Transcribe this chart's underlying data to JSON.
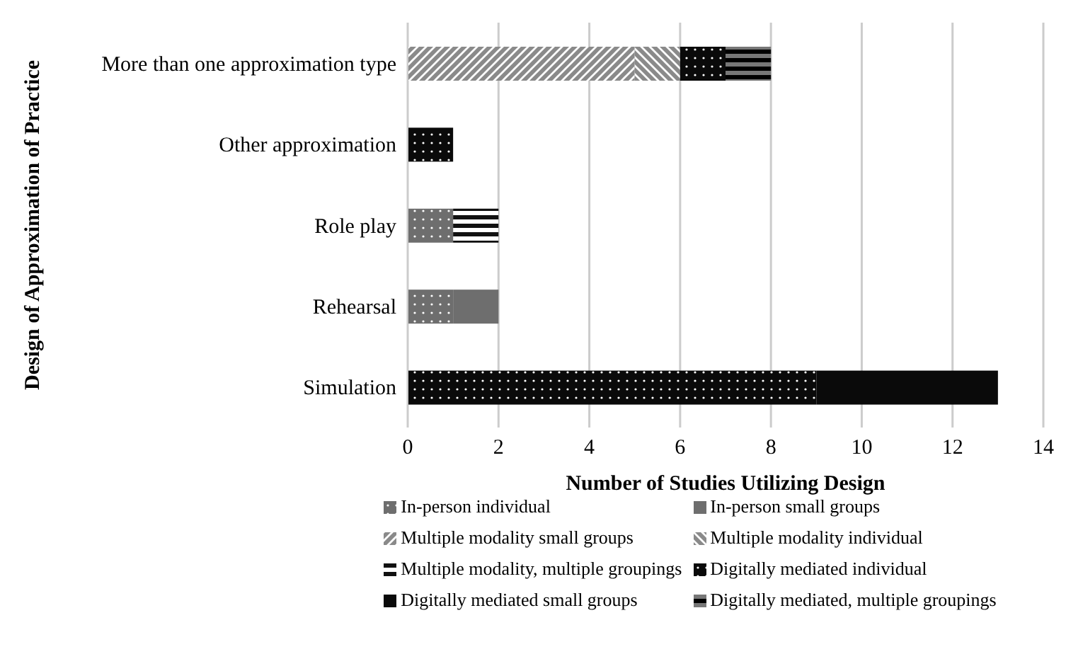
{
  "chart_data": {
    "type": "bar",
    "orientation": "horizontal",
    "stacked": true,
    "xlabel": "Number of Studies Utilizing Design",
    "ylabel": "Design of Approximation of Practice",
    "categories": [
      "More than one approximation type",
      "Other approximation",
      "Role play",
      "Rehearsal",
      "Simulation"
    ],
    "series": [
      {
        "name": "In-person individual",
        "color": "#6e6e6e",
        "values": [
          0,
          0,
          1,
          1,
          0
        ]
      },
      {
        "name": "In-person small groups",
        "color": "#6e6e6e",
        "values": [
          0,
          0,
          0,
          1,
          0
        ]
      },
      {
        "name": "Multiple modality small groups",
        "color": "#8a8a8a",
        "values": [
          5,
          0,
          0,
          0,
          0
        ]
      },
      {
        "name": "Multiple modality individual",
        "color": "#8a8a8a",
        "values": [
          1,
          0,
          0,
          0,
          0
        ]
      },
      {
        "name": "Multiple modality, multiple groupings",
        "color": "#111111",
        "values": [
          0,
          0,
          1,
          0,
          0
        ]
      },
      {
        "name": "Digitally mediated individual",
        "color": "#0a0a0a",
        "values": [
          1,
          1,
          0,
          0,
          9
        ]
      },
      {
        "name": "Digitally mediated small groups",
        "color": "#0a0a0a",
        "values": [
          0,
          0,
          0,
          0,
          4
        ]
      },
      {
        "name": "Digitally mediated, multiple groupings",
        "color": "#777777",
        "values": [
          1,
          0,
          0,
          0,
          0
        ]
      }
    ],
    "xlim": [
      0,
      14
    ],
    "xticks": [
      0,
      2,
      4,
      6,
      8,
      10,
      12,
      14
    ],
    "grid": "x",
    "legend": "bottom"
  }
}
